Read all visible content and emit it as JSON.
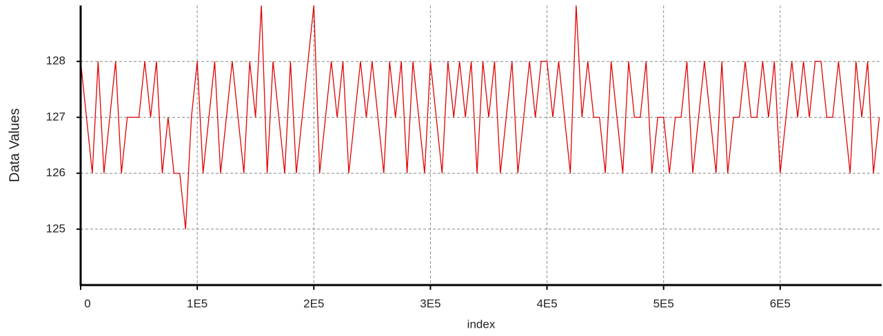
{
  "chart_data": {
    "type": "line",
    "xlabel": "index",
    "ylabel": "Data Values",
    "x": [
      0,
      5000,
      10000,
      15000,
      20000,
      25000,
      30000,
      35000,
      40000,
      45000,
      50000,
      55000,
      60000,
      65000,
      70000,
      75000,
      80000,
      85000,
      90000,
      95000,
      100000,
      105000,
      110000,
      115000,
      120000,
      125000,
      130000,
      135000,
      140000,
      145000,
      150000,
      155000,
      160000,
      165000,
      170000,
      175000,
      180000,
      185000,
      190000,
      195000,
      200000,
      205000,
      210000,
      215000,
      220000,
      225000,
      230000,
      235000,
      240000,
      245000,
      250000,
      255000,
      260000,
      265000,
      270000,
      275000,
      280000,
      285000,
      290000,
      295000,
      300000,
      305000,
      310000,
      315000,
      320000,
      325000,
      330000,
      335000,
      340000,
      345000,
      350000,
      355000,
      360000,
      365000,
      370000,
      375000,
      380000,
      385000,
      390000,
      395000,
      400000,
      405000,
      410000,
      415000,
      420000,
      425000,
      430000,
      435000,
      440000,
      445000,
      450000,
      455000,
      460000,
      465000,
      470000,
      475000,
      480000,
      485000,
      490000,
      495000,
      500000,
      505000,
      510000,
      515000,
      520000,
      525000,
      530000,
      535000,
      540000,
      545000,
      550000,
      555000,
      560000,
      565000,
      570000,
      575000,
      580000,
      585000,
      590000,
      595000,
      600000,
      605000,
      610000,
      615000,
      620000,
      625000,
      630000,
      635000,
      640000,
      645000,
      650000,
      655000,
      660000,
      665000,
      670000,
      675000,
      680000,
      685000
    ],
    "series": [
      {
        "name": "Data Values",
        "color": "#e00000",
        "values": [
          128,
          127,
          126,
          128,
          126,
          127,
          128,
          126,
          127,
          127,
          127,
          128,
          127,
          128,
          126,
          127,
          126,
          126,
          125,
          127,
          128,
          126,
          127,
          128,
          126,
          127,
          128,
          127,
          126,
          128,
          127,
          129,
          126,
          128,
          127,
          126,
          128,
          126,
          127,
          128,
          129,
          126,
          127,
          128,
          127,
          128,
          126,
          127,
          128,
          127,
          128,
          127,
          126,
          128,
          127,
          128,
          126,
          128,
          127,
          126,
          128,
          127,
          126,
          128,
          127,
          128,
          127,
          128,
          126,
          128,
          127,
          128,
          126,
          127,
          128,
          126,
          127,
          128,
          127,
          128,
          128,
          127,
          128,
          127,
          126,
          129,
          127,
          128,
          127,
          127,
          126,
          128,
          127,
          126,
          128,
          127,
          127,
          128,
          126,
          127,
          127,
          126,
          127,
          127,
          128,
          126,
          127,
          128,
          127,
          126,
          128,
          126,
          127,
          127,
          128,
          127,
          127,
          128,
          127,
          128,
          126,
          127,
          128,
          127,
          128,
          127,
          128,
          128,
          127,
          127,
          128,
          127,
          126,
          128,
          127,
          128,
          126,
          127
        ]
      }
    ],
    "xlim": [
      0,
      687000
    ],
    "ylim": [
      124,
      129
    ],
    "xticks": [
      0,
      {
        "value": 100000,
        "label": "1E5"
      },
      {
        "value": 200000,
        "label": "2E5"
      },
      {
        "value": 300000,
        "label": "3E5"
      },
      {
        "value": 400000,
        "label": "4E5"
      },
      {
        "value": 500000,
        "label": "5E5"
      },
      {
        "value": 600000,
        "label": "6E5"
      }
    ],
    "yticks": [
      125,
      126,
      127,
      128
    ],
    "grid": true
  }
}
